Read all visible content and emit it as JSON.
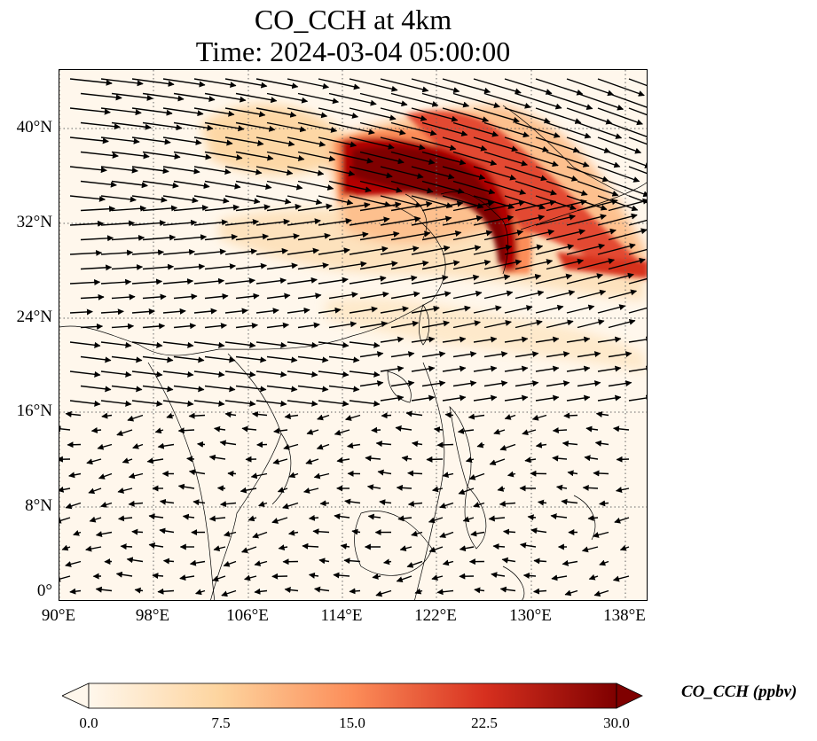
{
  "title": {
    "line1": "CO_CCH at 4km",
    "line2": "Time: 2024-03-04 05:00:00"
  },
  "axes": {
    "lat_ticks": [
      "0°",
      "8°N",
      "16°N",
      "24°N",
      "32°N",
      "40°N"
    ],
    "lon_ticks": [
      "90°E",
      "98°E",
      "106°E",
      "114°E",
      "122°E",
      "130°E",
      "138°E"
    ]
  },
  "colorbar": {
    "label": "CO_CCH (ppbv)",
    "ticks": [
      "0.0",
      "7.5",
      "15.0",
      "22.5",
      "30.0"
    ],
    "colors": [
      "#fff7ec",
      "#fdd49e",
      "#fc8d59",
      "#d7301f",
      "#7f0000"
    ]
  },
  "map": {
    "grid_style": "dotted",
    "background_color": "#fff7ec"
  }
}
